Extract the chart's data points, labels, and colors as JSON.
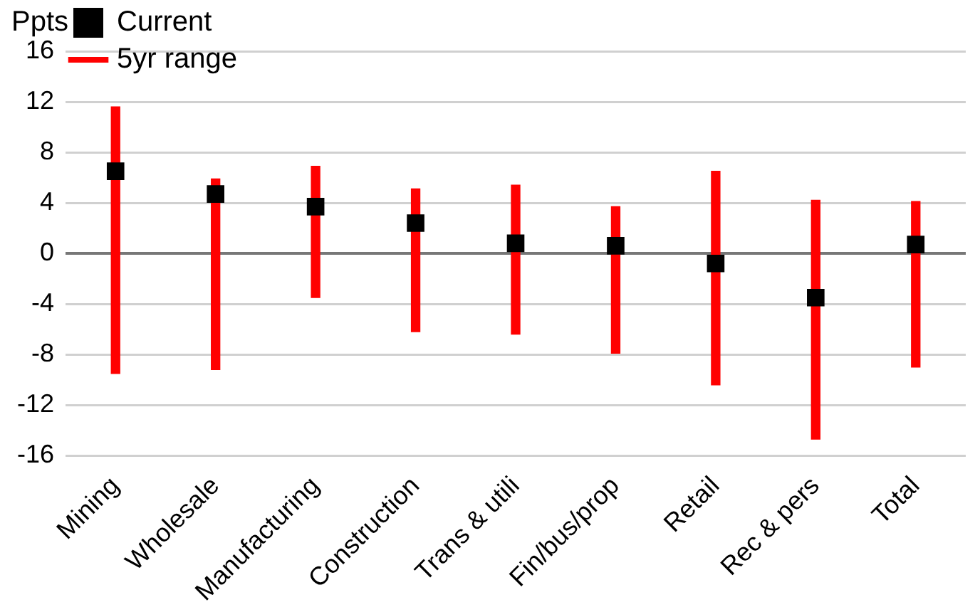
{
  "chart_data": {
    "type": "scatter",
    "ylabel": "Ppts",
    "categories": [
      "Mining",
      "Wholesale",
      "Manufacturing",
      "Construction",
      "Trans & utili",
      "Fin/bus/prop",
      "Retail",
      "Rec & pers",
      "Total"
    ],
    "series": [
      {
        "name": "Current",
        "color": "#000000",
        "marker": "square",
        "values": [
          6.5,
          4.7,
          3.7,
          2.4,
          0.8,
          0.6,
          -0.8,
          -3.5,
          0.7
        ]
      },
      {
        "name": "5yr range",
        "type": "bar",
        "color": "#ff0000",
        "base": [
          -9.5,
          -9.2,
          -3.5,
          -6.2,
          -6.4,
          -7.9,
          -10.4,
          -14.7,
          -9.0
        ],
        "values": [
          21.1,
          15.1,
          10.4,
          11.3,
          11.8,
          11.6,
          16.9,
          18.9,
          13.1
        ]
      }
    ],
    "ylim": [
      -16,
      16
    ],
    "yticks": [
      -16,
      -12,
      -8,
      -4,
      0,
      4,
      8,
      12,
      16
    ],
    "grid": "y",
    "legend": "top left"
  }
}
